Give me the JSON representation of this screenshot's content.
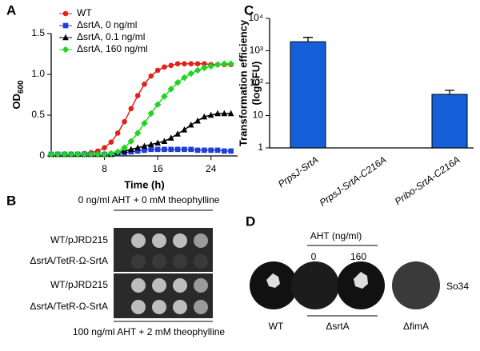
{
  "chart_data": [
    {
      "type": "line",
      "panel": "A",
      "x_label": "Time (h)",
      "y_label": "OD",
      "y_label_sub": "600",
      "x": [
        0,
        1,
        2,
        3,
        4,
        5,
        6,
        7,
        8,
        9,
        10,
        11,
        12,
        13,
        14,
        15,
        16,
        17,
        18,
        19,
        20,
        21,
        22,
        23,
        24,
        25,
        26,
        27
      ],
      "xlim": [
        0,
        28
      ],
      "xticks": [
        8,
        16,
        24
      ],
      "ylim": [
        0,
        1.5
      ],
      "yticks": [
        0,
        0.5,
        {
          "value": 1,
          "label": "1.0"
        },
        1.5
      ],
      "legend": "upper left",
      "series": [
        {
          "name": "WT",
          "color": "#e32119",
          "marker": "circle",
          "values": [
            0.02,
            0.02,
            0.02,
            0.02,
            0.02,
            0.03,
            0.04,
            0.06,
            0.1,
            0.17,
            0.28,
            0.42,
            0.58,
            0.74,
            0.88,
            0.98,
            1.05,
            1.09,
            1.11,
            1.13,
            1.13,
            1.13,
            1.13,
            1.13,
            1.12,
            1.12,
            1.12,
            1.12
          ]
        },
        {
          "name": "ΔsrtA, 0 ng/ml",
          "color": "#1f3ed6",
          "marker": "square",
          "values": [
            0.02,
            0.02,
            0.02,
            0.02,
            0.02,
            0.02,
            0.02,
            0.02,
            0.02,
            0.02,
            0.03,
            0.04,
            0.05,
            0.06,
            0.07,
            0.08,
            0.08,
            0.08,
            0.08,
            0.08,
            0.08,
            0.08,
            0.07,
            0.07,
            0.07,
            0.07,
            0.06,
            0.06
          ]
        },
        {
          "name": "ΔsrtA, 0.1 ng/ml",
          "color": "#000000",
          "marker": "triangle",
          "values": [
            0.02,
            0.02,
            0.02,
            0.02,
            0.02,
            0.02,
            0.02,
            0.02,
            0.02,
            0.02,
            0.04,
            0.06,
            0.08,
            0.1,
            0.12,
            0.14,
            0.16,
            0.18,
            0.22,
            0.27,
            0.32,
            0.38,
            0.43,
            0.48,
            0.5,
            0.52,
            0.52,
            0.52
          ]
        },
        {
          "name": "ΔsrtA, 160 ng/ml",
          "color": "#22d422",
          "marker": "diamond",
          "values": [
            0.02,
            0.02,
            0.02,
            0.02,
            0.02,
            0.02,
            0.02,
            0.02,
            0.02,
            0.03,
            0.05,
            0.1,
            0.18,
            0.28,
            0.4,
            0.52,
            0.63,
            0.73,
            0.82,
            0.9,
            0.96,
            1.01,
            1.05,
            1.08,
            1.1,
            1.12,
            1.13,
            1.13
          ]
        }
      ]
    },
    {
      "type": "bar",
      "panel": "C",
      "y_label": "Transformation efficiency",
      "y_label2": "(logCFU)",
      "categories": [
        "PrpsJ-SrtA",
        "PrpsJ-SrtA-C216A",
        "Pribo-SrtA-C216A"
      ],
      "values": [
        1900,
        null,
        45
      ],
      "errors": [
        700,
        null,
        15
      ],
      "color": "#1560d8",
      "log_scale": true,
      "ylim": [
        1,
        10000
      ],
      "yticks": [
        1,
        10,
        {
          "value": 100,
          "label": "10²"
        },
        {
          "value": 1000,
          "label": "10³"
        },
        {
          "value": 10000,
          "label": "10⁴"
        }
      ]
    }
  ],
  "panel_b": {
    "letter": "B",
    "top_condition": "0 ng/ml AHT + 0 mM theophylline",
    "bottom_condition": "100 ng/ml AHT + 2 mM theophylline",
    "rows": [
      "WT/pJRD215",
      "ΔsrtA/TetR-Ω-SrtA",
      "WT/pJRD215",
      "ΔsrtA/TetR-Ω-SrtA"
    ]
  },
  "panel_d": {
    "letter": "D",
    "header": "AHT (ng/ml)",
    "doses": [
      "0",
      "160"
    ],
    "strain_label": "So34",
    "groups": [
      "WT",
      "ΔsrtA",
      "ΔfimA"
    ]
  }
}
